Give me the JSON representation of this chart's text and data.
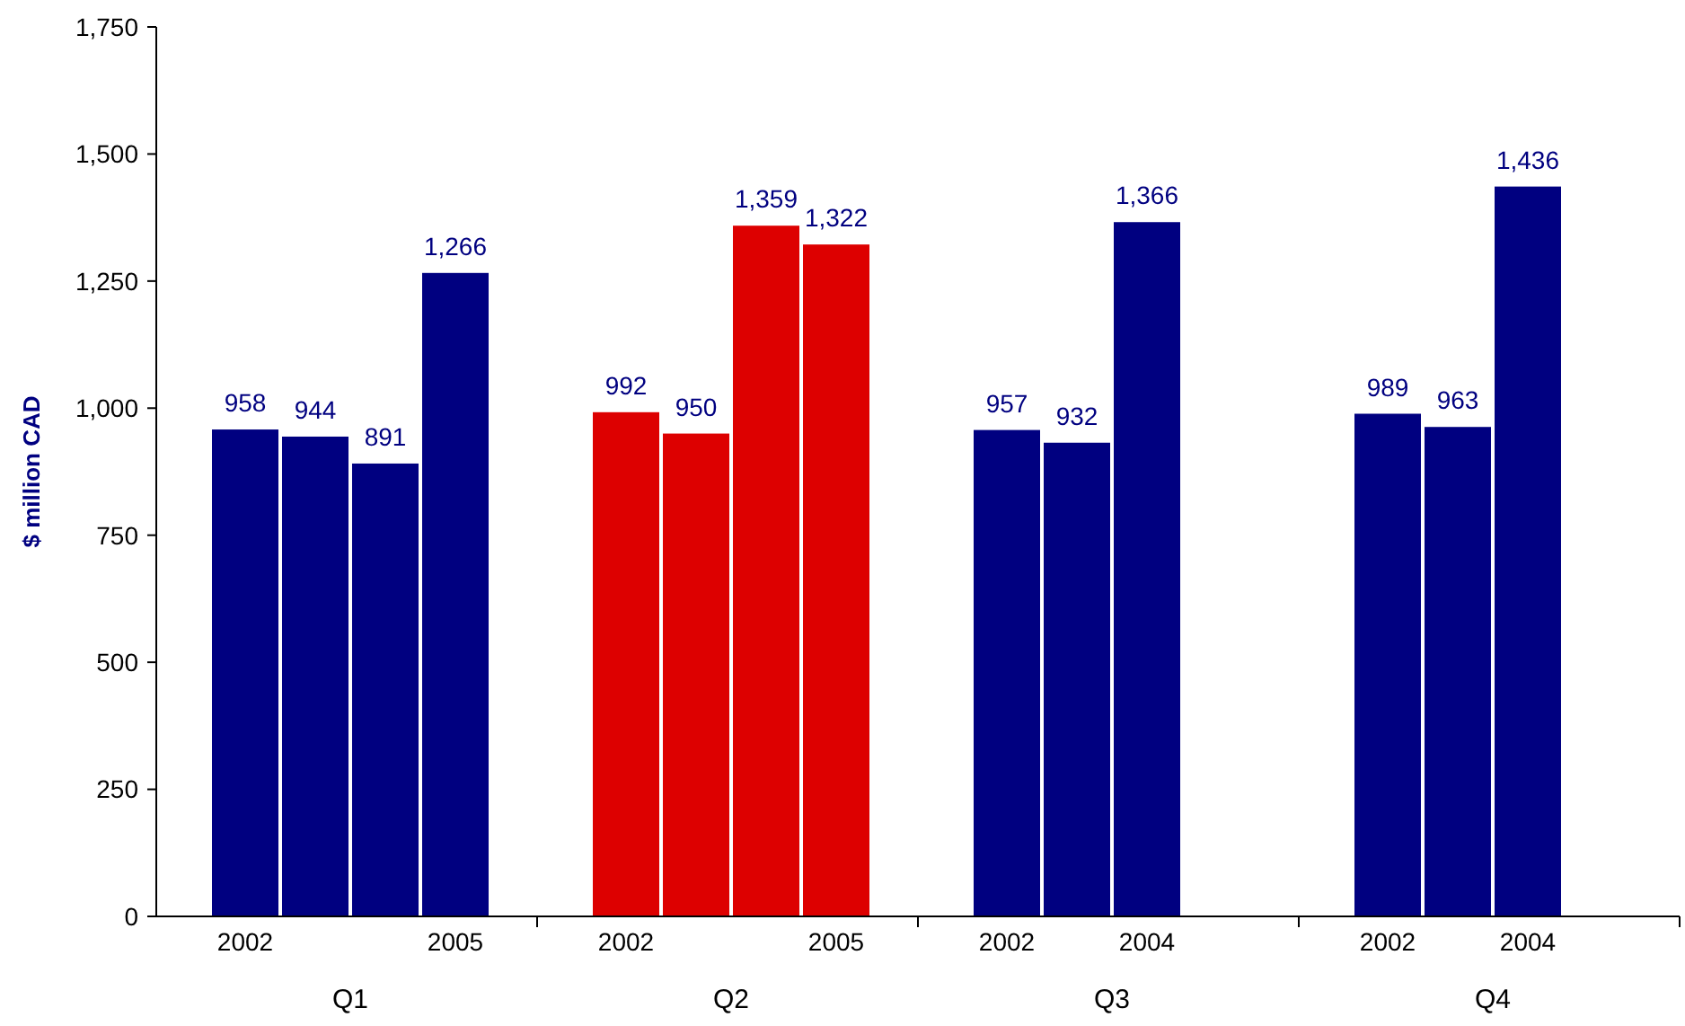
{
  "chart_data": {
    "type": "bar",
    "ylabel": "$ million CAD",
    "categories": [
      "2002",
      null,
      null,
      "2005",
      "2002",
      null,
      null,
      "2005",
      "2002",
      null,
      "2004",
      null,
      "2002",
      null,
      "2004",
      null
    ],
    "values": [
      958,
      944,
      891,
      1266,
      992,
      950,
      1359,
      1322,
      957,
      932,
      1366,
      null,
      989,
      963,
      1436,
      null
    ],
    "colors": [
      "#000080",
      "#000080",
      "#000080",
      "#000080",
      "#dd0000",
      "#dd0000",
      "#dd0000",
      "#dd0000",
      "#000080",
      "#000080",
      "#000080",
      null,
      "#000080",
      "#000080",
      "#000080",
      null
    ],
    "ylim": [
      0,
      1750
    ],
    "yticks": [
      0,
      {
        "value": 250,
        "label": "250"
      },
      {
        "value": 500,
        "label": "500"
      },
      {
        "value": 750,
        "label": "750"
      },
      {
        "value": 1000,
        "label": "1,000"
      },
      {
        "value": 1250,
        "label": "1,250"
      },
      {
        "value": 1500,
        "label": "1,500"
      },
      {
        "value": 1750,
        "label": "1,750"
      }
    ],
    "data_labels": true,
    "value_labels": [
      "958",
      "944",
      "891",
      "1,266",
      "992",
      "950",
      "1,359",
      "1,322",
      "957",
      "932",
      "1,366",
      null,
      "989",
      "963",
      "1,436",
      null
    ],
    "annotations": [
      "Q1",
      "Q2",
      "Q3",
      "Q4"
    ],
    "grid": false
  }
}
